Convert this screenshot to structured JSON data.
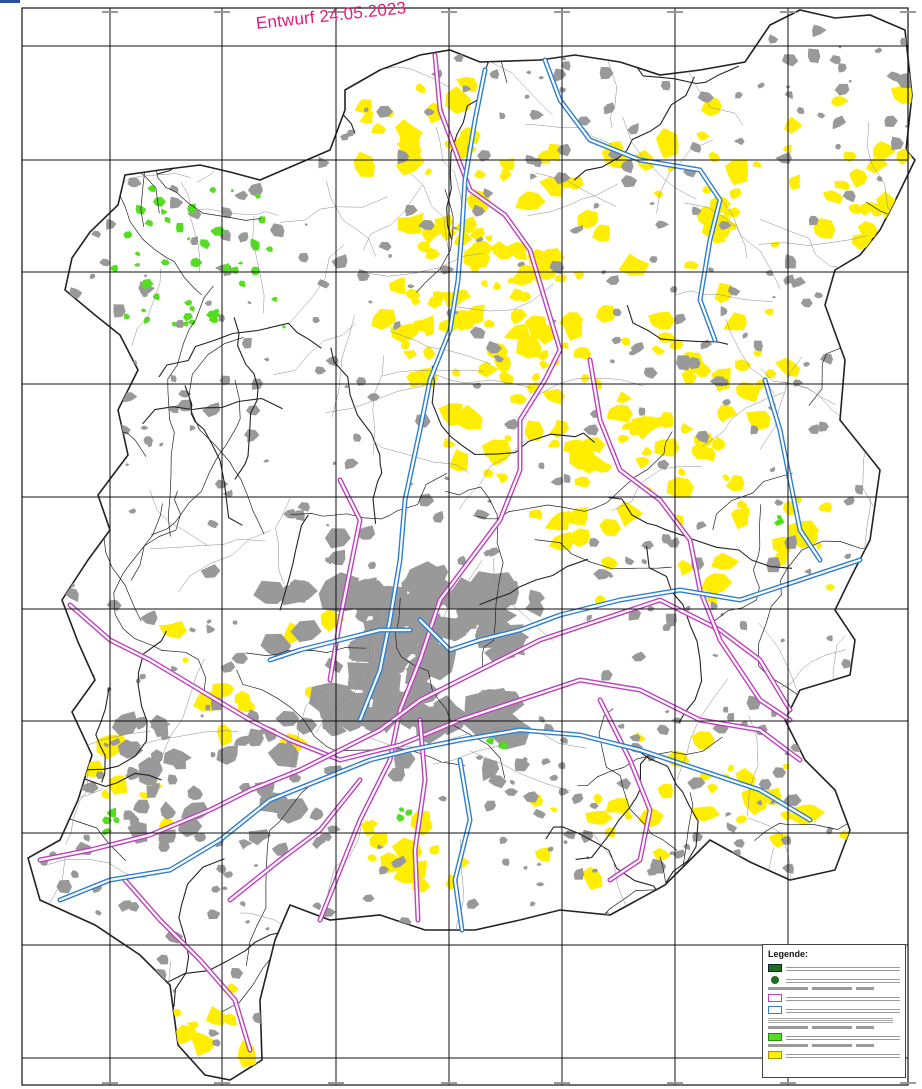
{
  "stamp": {
    "text": "Entwurf 24.05.2023",
    "color": "#e6197a"
  },
  "legend": {
    "title": "Legende:"
  },
  "colors": {
    "settlement": "#999999",
    "yellow_area": "#ffee00",
    "green_area": "#55dd22",
    "corridor_magenta": "#c040c0",
    "corridor_blue": "#2f7fd0",
    "grid": "#111111",
    "boundary": "#222222"
  },
  "icons": [
    "legend-dark-green-swatch-icon",
    "legend-green-dot-icon",
    "legend-magenta-outline-icon",
    "legend-blue-outline-icon",
    "legend-green-swatch-icon",
    "legend-yellow-swatch-icon"
  ]
}
